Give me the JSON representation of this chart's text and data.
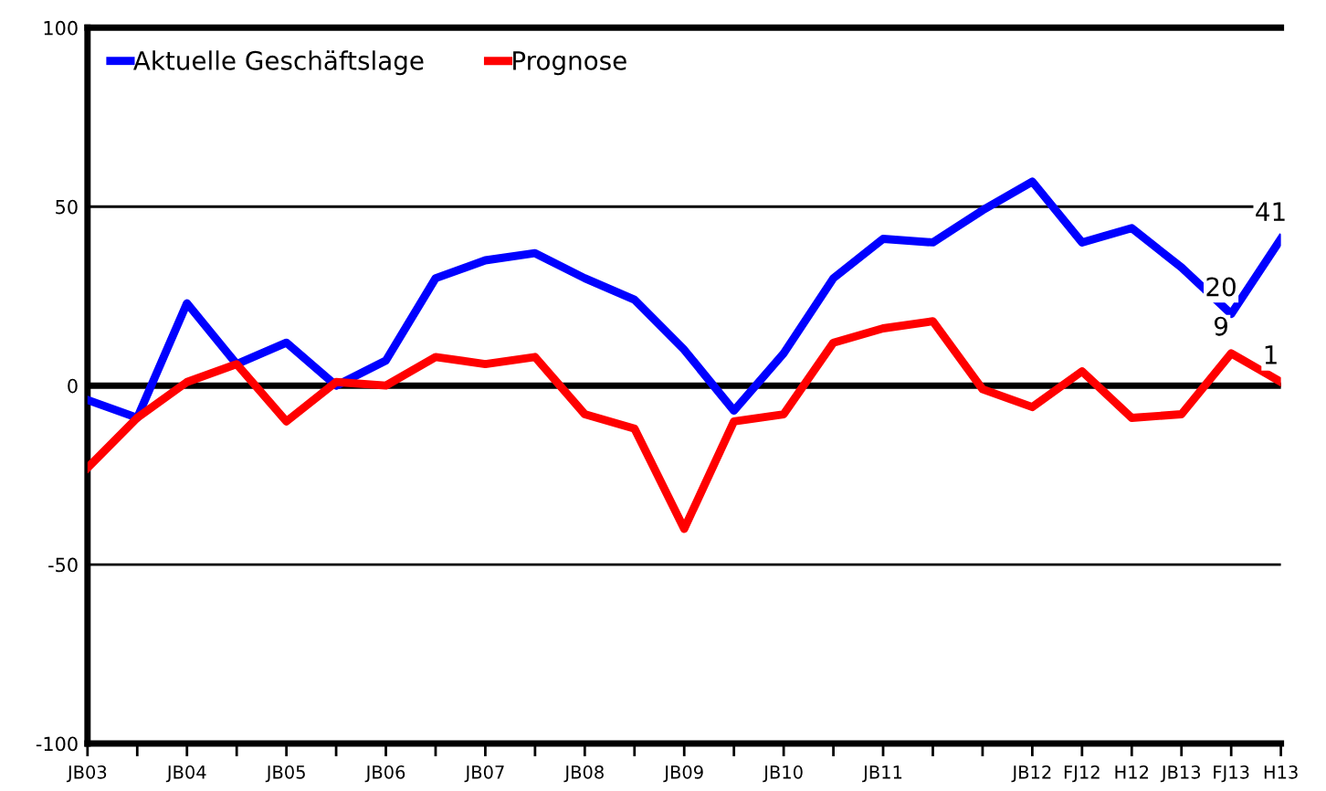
{
  "chart_data": {
    "type": "line",
    "categories": [
      "JB03",
      null,
      "JB04",
      null,
      "JB05",
      null,
      "JB06",
      null,
      "JB07",
      null,
      "JB08",
      null,
      "JB09",
      null,
      "JB10",
      null,
      "JB11",
      null,
      null,
      "JB12",
      "FJ12",
      "H12",
      "JB13",
      "FJ13",
      "H13"
    ],
    "series": [
      {
        "name": "Aktuelle Geschäftslage",
        "color": "#0000ff",
        "values": [
          -4,
          -9,
          23,
          6,
          12,
          0,
          7,
          30,
          35,
          37,
          30,
          24,
          10,
          -7,
          9,
          30,
          41,
          40,
          49,
          57,
          40,
          44,
          33,
          20,
          41
        ],
        "value_labels": [
          null,
          null,
          null,
          null,
          null,
          null,
          null,
          null,
          null,
          null,
          null,
          null,
          null,
          null,
          null,
          null,
          null,
          null,
          null,
          null,
          null,
          null,
          null,
          "20",
          "41"
        ]
      },
      {
        "name": "Prognose",
        "color": "#ff0000",
        "values": [
          -23,
          -9,
          1,
          6,
          -10,
          1,
          0,
          8,
          6,
          8,
          -8,
          -12,
          -40,
          -10,
          -8,
          12,
          16,
          18,
          -1,
          -6,
          4,
          -9,
          -8,
          9,
          1
        ],
        "value_labels": [
          null,
          null,
          null,
          null,
          null,
          null,
          null,
          null,
          null,
          null,
          null,
          null,
          null,
          null,
          null,
          null,
          null,
          null,
          null,
          null,
          null,
          null,
          null,
          "9",
          "1"
        ]
      }
    ],
    "ylim": [
      -100,
      100
    ],
    "yticks": [
      -100,
      -50,
      0,
      50,
      100
    ],
    "grid": "y",
    "ref_lines": [
      {
        "axis": "y",
        "value": 0,
        "color": "#000000"
      }
    ],
    "legend": "top left",
    "marker": "none",
    "line_style": "solid"
  }
}
